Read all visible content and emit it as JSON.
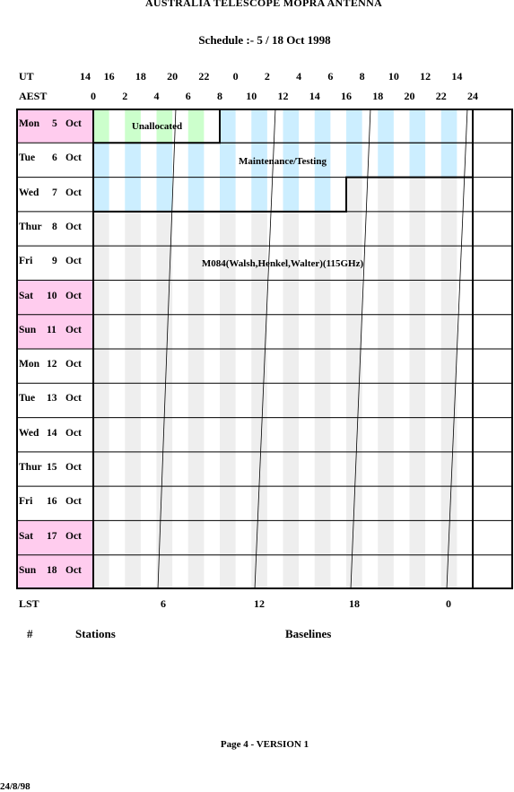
{
  "title": "AUSTRALIA TELESCOPE MOPRA ANTENNA",
  "subtitle": "Schedule :- 5 / 18 Oct 1998",
  "axes": {
    "ut_label": "UT",
    "ut_ticks": [
      "14",
      "16",
      "18",
      "20",
      "22",
      "0",
      "2",
      "4",
      "6",
      "8",
      "10",
      "12",
      "14"
    ],
    "aest_label": "AEST",
    "aest_ticks": [
      "0",
      "2",
      "4",
      "6",
      "8",
      "10",
      "12",
      "14",
      "16",
      "18",
      "20",
      "22",
      "24"
    ],
    "lst_label": "LST",
    "lst_ticks": [
      "6",
      "12",
      "18",
      "0"
    ]
  },
  "days": [
    {
      "name": "Mon",
      "date": "5",
      "month": "Oct",
      "highlight": true
    },
    {
      "name": "Tue",
      "date": "6",
      "month": "Oct",
      "highlight": false
    },
    {
      "name": "Wed",
      "date": "7",
      "month": "Oct",
      "highlight": false
    },
    {
      "name": "Thur",
      "date": "8",
      "month": "Oct",
      "highlight": false
    },
    {
      "name": "Fri",
      "date": "9",
      "month": "Oct",
      "highlight": false
    },
    {
      "name": "Sat",
      "date": "10",
      "month": "Oct",
      "highlight": true
    },
    {
      "name": "Sun",
      "date": "11",
      "month": "Oct",
      "highlight": true
    },
    {
      "name": "Mon",
      "date": "12",
      "month": "Oct",
      "highlight": false
    },
    {
      "name": "Tue",
      "date": "13",
      "month": "Oct",
      "highlight": false
    },
    {
      "name": "Wed",
      "date": "14",
      "month": "Oct",
      "highlight": false
    },
    {
      "name": "Thur",
      "date": "15",
      "month": "Oct",
      "highlight": false
    },
    {
      "name": "Fri",
      "date": "16",
      "month": "Oct",
      "highlight": false
    },
    {
      "name": "Sat",
      "date": "17",
      "month": "Oct",
      "highlight": true
    },
    {
      "name": "Sun",
      "date": "18",
      "month": "Oct",
      "highlight": true
    }
  ],
  "blocks": {
    "unallocated": "Unallocated",
    "maintenance": "Maintenance/Testing",
    "project": "M084(Walsh,Henkel,Walter)(115GHz)"
  },
  "footer": {
    "col_number": "#",
    "col_stations": "Stations",
    "col_baselines": "Baselines",
    "page": "Page 4 - VERSION 1",
    "date": "24/8/98"
  },
  "colors": {
    "weekend": "#ffccee",
    "unallocated": "#ccffcc",
    "maintenance": "#cceeff",
    "project": "#eeeeee"
  }
}
